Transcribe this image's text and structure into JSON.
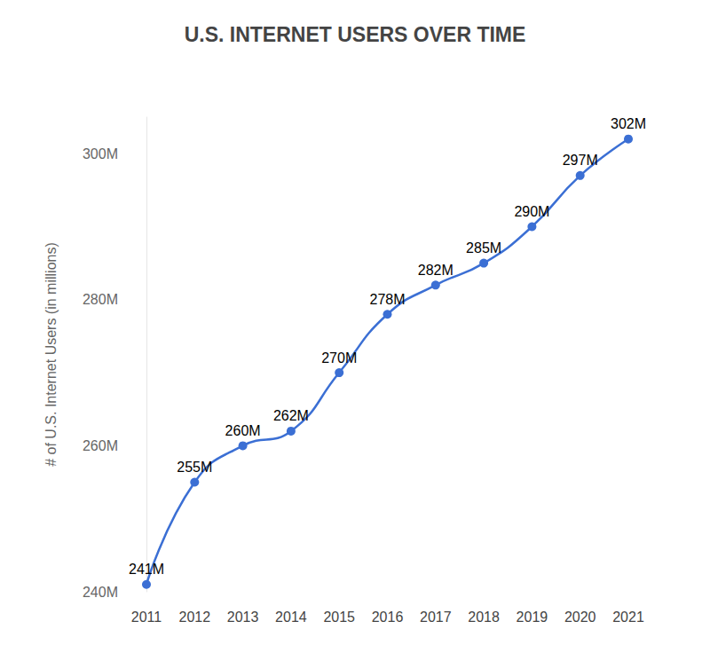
{
  "chart_data": {
    "type": "line",
    "title": "U.S. INTERNET USERS OVER TIME",
    "y_label": "# of U.S. Internet Users (in millions)",
    "categories": [
      "2011",
      "2012",
      "2013",
      "2014",
      "2015",
      "2016",
      "2017",
      "2018",
      "2019",
      "2020",
      "2021"
    ],
    "values": [
      241,
      255,
      260,
      262,
      270,
      278,
      282,
      285,
      290,
      297,
      302
    ],
    "value_labels": [
      "241M",
      "255M",
      "260M",
      "262M",
      "270M",
      "278M",
      "282M",
      "285M",
      "290M",
      "297M",
      "302M"
    ],
    "color": "#3b6fd4",
    "ylim": [
      240,
      305
    ],
    "yticks": [
      {
        "value": 240,
        "label": "240M"
      },
      {
        "value": 260,
        "label": "260M"
      },
      {
        "value": 280,
        "label": "280M"
      },
      {
        "value": 300,
        "label": "300M"
      }
    ],
    "grid": false,
    "data_labels": true,
    "marker": "circle",
    "line_style": "solid"
  }
}
